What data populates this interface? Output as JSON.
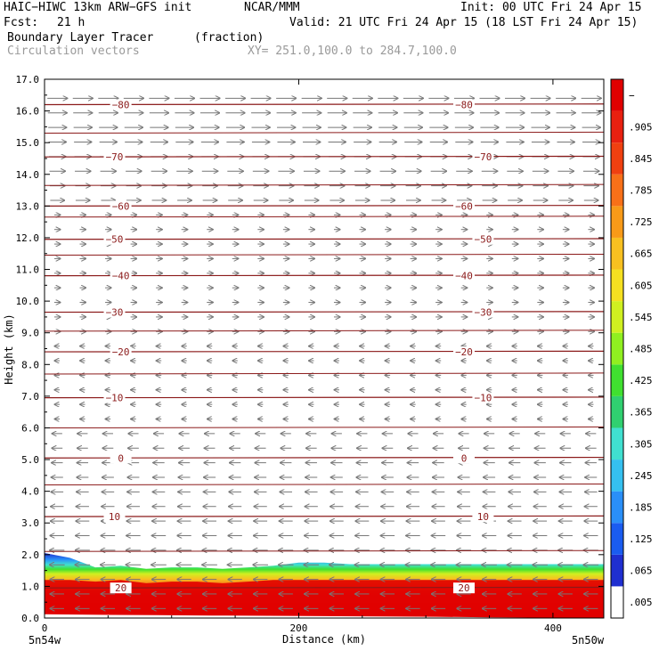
{
  "header": {
    "model": "HAIC−HIWC 13km ARW−GFS init",
    "org": "NCAR/MMM",
    "init": "Init: 00 UTC Fri 24 Apr 15",
    "fcst_label": "Fcst:",
    "fcst_value": "21 h",
    "valid": "Valid: 21 UTC Fri 24 Apr 15 (18 LST Fri 24 Apr 15)",
    "field": "Boundary Layer Tracer",
    "field_units": "(fraction)",
    "overlay": "Circulation vectors",
    "xy": "XY= 251.0,100.0 to 284.7,100.0"
  },
  "chart_data": {
    "type": "heatmap",
    "xlabel": "Distance (km)",
    "ylabel": "Height (km)",
    "xlim": [
      0,
      440
    ],
    "ylim": [
      0,
      17
    ],
    "x_ticks": [
      0,
      200,
      400
    ],
    "x_tick_labels": [
      "0",
      "200",
      "400"
    ],
    "y_ticks": [
      0,
      1,
      2,
      3,
      4,
      5,
      6,
      7,
      8,
      9,
      10,
      11,
      12,
      13,
      14,
      15,
      16,
      17
    ],
    "y_tick_labels": [
      "0.0",
      "1.0",
      "2.0",
      "3.0",
      "4.0",
      "5.0",
      "6.0",
      "7.0",
      "8.0",
      "9.0",
      "10.0",
      "11.0",
      "12.0",
      "13.0",
      "14.0",
      "15.0",
      "16.0",
      "17.0"
    ],
    "x_end_labels": {
      "left": "5n54w",
      "right": "5n50w"
    },
    "colorbar": {
      "labels": [
        ".005",
        ".065",
        ".125",
        ".185",
        ".245",
        ".305",
        ".365",
        ".425",
        ".485",
        ".545",
        ".605",
        ".665",
        ".725",
        ".785",
        ".845",
        ".905",
        "−"
      ],
      "colors": [
        "#ffffff",
        "#1f2fd0",
        "#1a5cf0",
        "#2a8ff8",
        "#35c0f0",
        "#40e0d0",
        "#30d070",
        "#40e030",
        "#90f020",
        "#d0f020",
        "#f5e020",
        "#f8c020",
        "#f89a18",
        "#f87018",
        "#f04010",
        "#e82010",
        "#e00000"
      ]
    },
    "tracer_top_km": [
      2.05,
      1.9,
      1.6,
      1.65,
      1.55,
      1.6,
      1.6,
      1.55,
      1.6,
      1.65,
      1.75,
      1.75,
      1.7,
      1.7,
      1.7,
      1.7,
      1.7,
      1.7,
      1.7,
      1.7,
      1.7,
      1.7,
      1.7
    ],
    "terrain_km": [
      0.6,
      0.5,
      0.45,
      0.4,
      0.35,
      0.3,
      0.25,
      0.2,
      0.1,
      0.05,
      0.05
    ],
    "temperature_isotherms": [
      {
        "label": "20",
        "z_km": 0.95
      },
      {
        "label": "10",
        "z_km": 3.2
      },
      {
        "label": "0",
        "z_km": 5.05
      },
      {
        "label": "−10",
        "z_km": 6.95
      },
      {
        "label": "−20",
        "z_km": 8.4
      },
      {
        "label": "−30",
        "z_km": 9.65
      },
      {
        "label": "−40",
        "z_km": 10.8
      },
      {
        "label": "−50",
        "z_km": 11.95
      },
      {
        "label": "−60",
        "z_km": 13.0
      },
      {
        "label": "−70",
        "z_km": 14.55
      },
      {
        "label": "−80",
        "z_km": 16.2
      }
    ],
    "extra_contours_km": [
      2.1,
      4.2,
      6.0,
      7.7,
      9.05,
      11.45,
      12.65,
      13.65,
      15.3
    ]
  }
}
